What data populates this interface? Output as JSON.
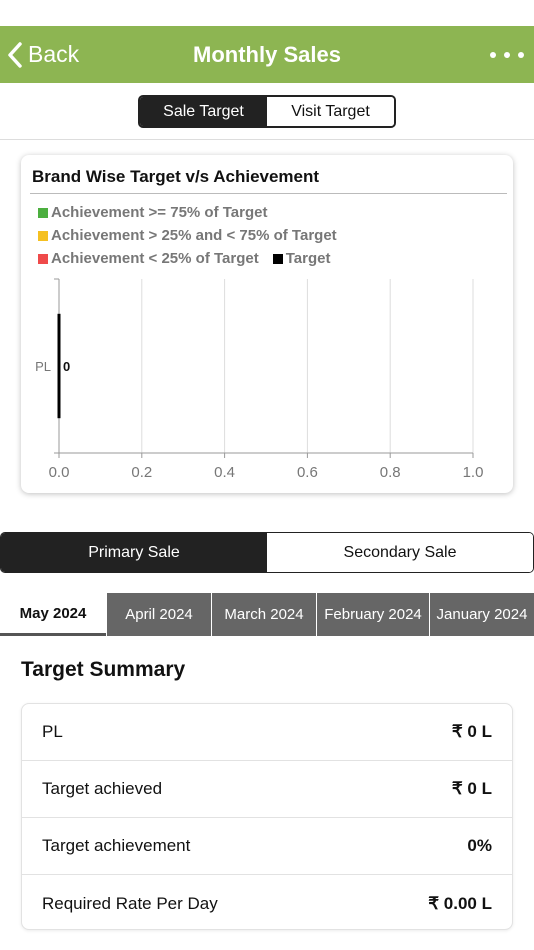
{
  "nav": {
    "back_label": "Back",
    "title": "Monthly Sales"
  },
  "target_toggle": {
    "sale": "Sale Target",
    "visit": "Visit Target"
  },
  "card": {
    "title": "Brand Wise Target v/s Achievement",
    "legend": {
      "green": "Achievement >= 75% of Target",
      "yellow": "Achievement > 25% and < 75% of Target",
      "red": "Achievement < 25% of Target",
      "target": "Target"
    }
  },
  "colors": {
    "accent": "#8db552",
    "green": "#4caf3f",
    "yellow": "#f5c021",
    "red": "#ef4a4a",
    "target": "#000000"
  },
  "chart_data": {
    "type": "bar",
    "orientation": "horizontal",
    "categories": [
      "PL"
    ],
    "values": [
      0
    ],
    "data_labels": [
      "0"
    ],
    "xlim": [
      0,
      1.0
    ],
    "xticks": [
      "0.0",
      "0.2",
      "0.4",
      "0.6",
      "0.8",
      "1.0"
    ],
    "grid": true,
    "legend_placement": "top-left"
  },
  "sale_toggle": {
    "primary": "Primary Sale",
    "secondary": "Secondary Sale"
  },
  "months": [
    "May 2024",
    "April 2024",
    "March 2024",
    "February 2024",
    "January 2024"
  ],
  "summary": {
    "title": "Target Summary",
    "rows": [
      {
        "label": "PL",
        "value": "₹ 0 L"
      },
      {
        "label": "Target achieved",
        "value": "₹ 0 L"
      },
      {
        "label": "Target achievement",
        "value": "0%"
      },
      {
        "label": "Required Rate Per Day",
        "value": "₹ 0.00 L"
      }
    ]
  }
}
